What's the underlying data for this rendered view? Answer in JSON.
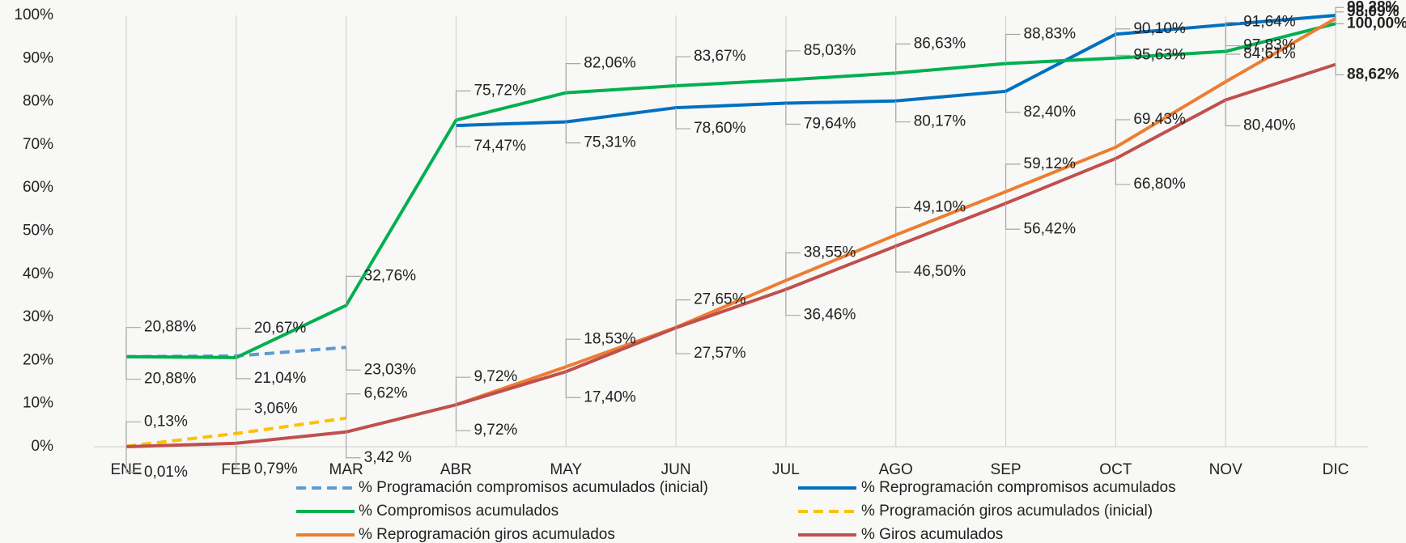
{
  "chart_data": {
    "type": "line",
    "categories": [
      "ENE",
      "FEB",
      "MAR",
      "ABR",
      "MAY",
      "JUN",
      "JUL",
      "AGO",
      "SEP",
      "OCT",
      "NOV",
      "DIC"
    ],
    "ylim": [
      0,
      100
    ],
    "yticks": [
      {
        "value": 0,
        "label": "0%"
      },
      {
        "value": 10,
        "label": "10%"
      },
      {
        "value": 20,
        "label": "20%"
      },
      {
        "value": 30,
        "label": "30%"
      },
      {
        "value": 40,
        "label": "40%"
      },
      {
        "value": 50,
        "label": "50%"
      },
      {
        "value": 60,
        "label": "60%"
      },
      {
        "value": 70,
        "label": "70%"
      },
      {
        "value": 80,
        "label": "80%"
      },
      {
        "value": 90,
        "label": "90%"
      },
      {
        "value": 100,
        "label": "100%"
      }
    ],
    "grid": true,
    "legend": "bottom",
    "series": [
      {
        "name": "% Programación compromisos acumulados (inicial)",
        "color": "#5b9bd5",
        "dashed": true,
        "values": [
          20.88,
          21.04,
          23.03,
          null,
          null,
          null,
          null,
          null,
          null,
          null,
          null,
          null
        ],
        "value_labels": [
          "20,88%",
          "21,04%",
          "23,03%",
          null,
          null,
          null,
          null,
          null,
          null,
          null,
          null,
          null
        ]
      },
      {
        "name": "% Reprogramación compromisos acumulados",
        "color": "#0070c0",
        "dashed": false,
        "values": [
          null,
          null,
          null,
          74.47,
          75.31,
          78.6,
          79.64,
          80.17,
          82.4,
          95.63,
          97.83,
          100.0
        ],
        "value_labels": [
          null,
          null,
          null,
          "74,47%",
          "75,31%",
          "78,60%",
          "79,64%",
          "80,17%",
          "82,40%",
          "95,63%",
          "97,83%",
          "100,00%"
        ]
      },
      {
        "name": "% Compromisos acumulados",
        "color": "#00b050",
        "dashed": false,
        "values": [
          20.88,
          20.67,
          32.76,
          75.72,
          82.06,
          83.67,
          85.03,
          86.63,
          88.83,
          90.1,
          91.64,
          98.09
        ],
        "value_labels": [
          "20,88%",
          "20,67%",
          "32,76%",
          "75,72%",
          "82,06%",
          "83,67%",
          "85,03%",
          "86,63%",
          "88,83%",
          "90,10%",
          "91,64%",
          "98,09%"
        ]
      },
      {
        "name": "% Programación giros acumulados (inicial)",
        "color": "#ffc000",
        "dashed": true,
        "values": [
          0.13,
          3.06,
          6.62,
          null,
          null,
          null,
          null,
          null,
          null,
          null,
          null,
          null
        ],
        "value_labels": [
          "0,13%",
          "3,06%",
          "6,62%",
          null,
          null,
          null,
          null,
          null,
          null,
          null,
          null,
          null
        ]
      },
      {
        "name": "% Reprogramación giros acumulados",
        "color": "#ed7d31",
        "dashed": false,
        "values": [
          null,
          null,
          null,
          9.72,
          18.53,
          27.65,
          38.55,
          49.1,
          59.12,
          69.43,
          84.61,
          99.28
        ],
        "value_labels": [
          null,
          null,
          null,
          "9,72%",
          "18,53%",
          "27,65%",
          "38,55%",
          "49,10%",
          "59,12%",
          "69,43%",
          "84,61%",
          "99,28%"
        ]
      },
      {
        "name": "% Giros acumulados",
        "color": "#c0504d",
        "dashed": false,
        "values": [
          0.01,
          0.79,
          3.42,
          9.72,
          17.4,
          27.57,
          36.46,
          46.5,
          56.42,
          66.8,
          80.4,
          88.62
        ],
        "value_labels": [
          "0,01%",
          "0,79%",
          "3,42 %",
          "9,72%",
          "17,40%",
          "27,57%",
          "36,46%",
          "46,50%",
          "56,42%",
          "66,80%",
          "80,40%",
          "88,62%"
        ]
      }
    ]
  }
}
